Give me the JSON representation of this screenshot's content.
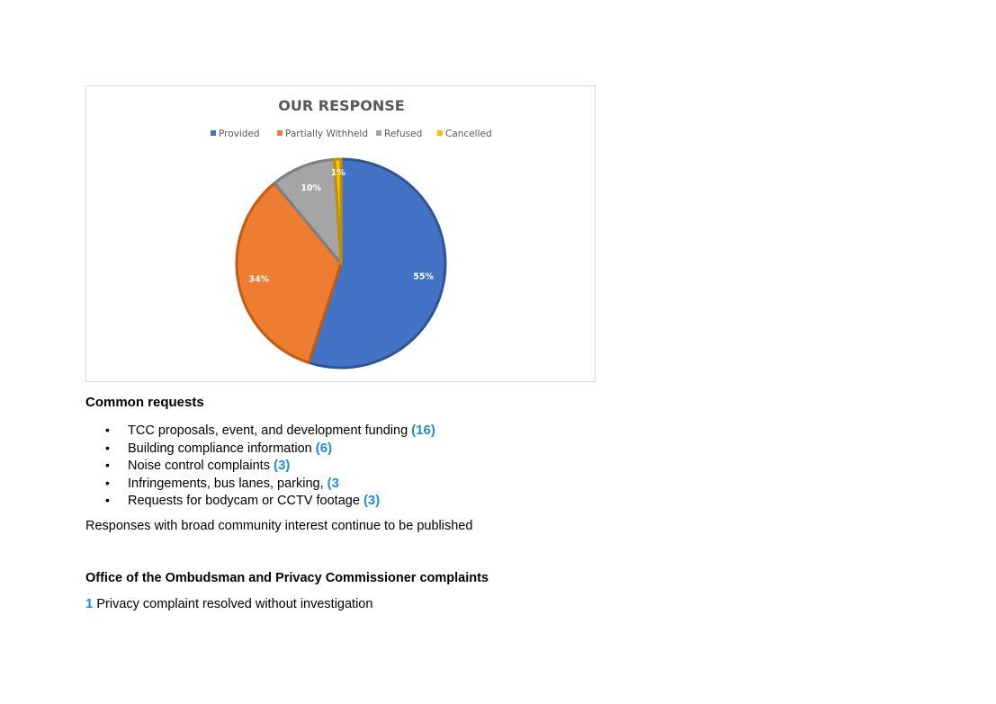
{
  "chart_data": {
    "type": "pie",
    "title": "OUR RESPONSE",
    "legend_position": "top",
    "categories": [
      "Provided",
      "Partially Withheld",
      "Refused",
      "Cancelled"
    ],
    "values": [
      55,
      34,
      10,
      1
    ],
    "labels": [
      "55%",
      "34%",
      "10%",
      "1%"
    ],
    "colors": [
      "#4472c4",
      "#ed7d31",
      "#a5a5a5",
      "#ffc000"
    ],
    "border_colors": [
      "#2f5597",
      "#c55a11",
      "#7f7f7f",
      "#bf9000"
    ]
  },
  "common_requests": {
    "heading": "Common requests",
    "items": [
      {
        "text": "TCC proposals, event, and development funding ",
        "count": "(16)"
      },
      {
        "text": "Building compliance information ",
        "count": "(6)"
      },
      {
        "text": "Noise control complaints ",
        "count": "(3)"
      },
      {
        "text": "Infringements, bus lanes, parking, ",
        "count": "(3"
      },
      {
        "text": "Requests for bodycam or CCTV footage ",
        "count": "(3)"
      }
    ],
    "bullet": "•"
  },
  "published_note": "Responses with broad community interest continue to be published",
  "ombudsman": {
    "heading": "Office of the Ombudsman and Privacy Commissioner complaints",
    "count": "1",
    "text": " Privacy complaint resolved without investigation"
  },
  "accent_color": "#1f8ed1"
}
